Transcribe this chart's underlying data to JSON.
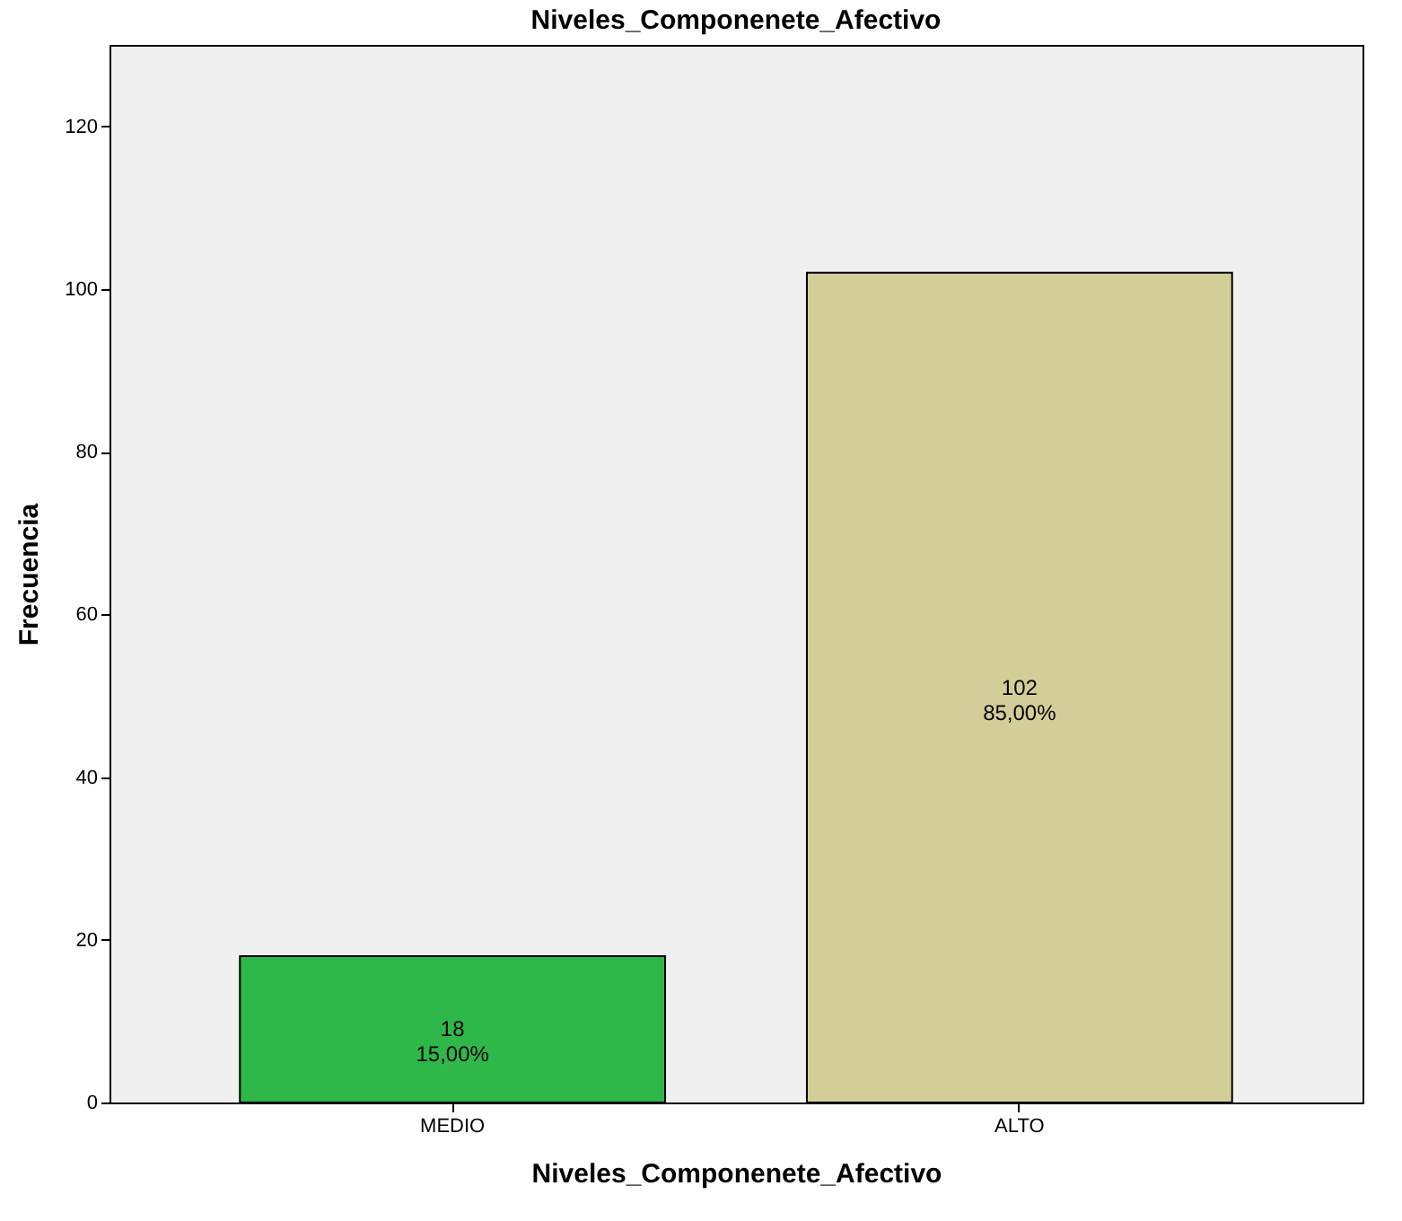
{
  "chart_data": {
    "type": "bar",
    "title": "Niveles_Componenete_Afectivo",
    "xlabel": "Niveles_Componenete_Afectivo",
    "ylabel": "Frecuencia",
    "categories": [
      "MEDIO",
      "ALTO"
    ],
    "values": [
      18,
      102
    ],
    "colors": [
      "#2eb84a",
      "#d3ce97"
    ],
    "value_labels": [
      "18\n15,00%",
      "102\n85,00%"
    ],
    "ylim": [
      0,
      130
    ],
    "yticks": [
      0,
      20,
      40,
      60,
      80,
      100,
      120
    ],
    "grid": false
  }
}
